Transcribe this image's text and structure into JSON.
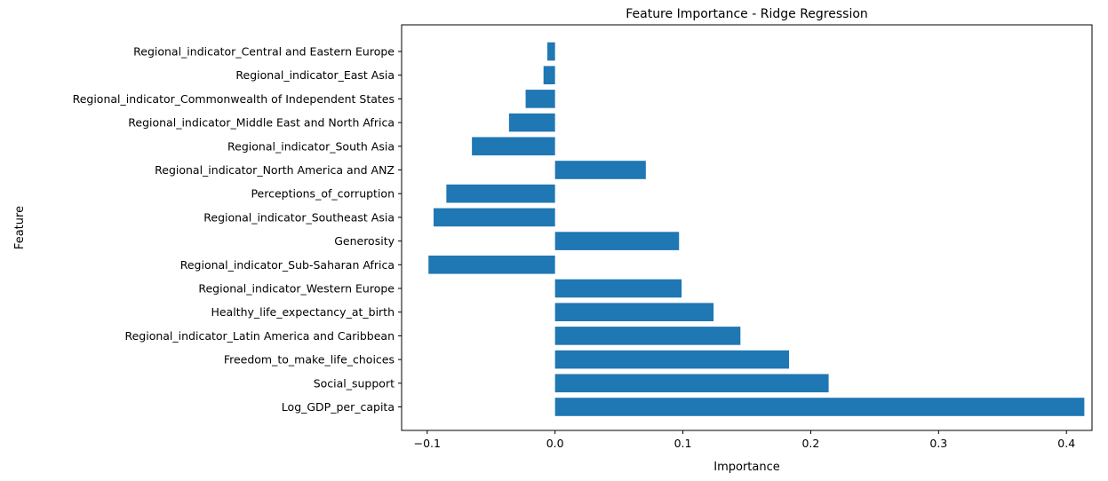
{
  "chart_data": {
    "type": "bar",
    "orientation": "horizontal",
    "title": "Feature Importance - Ridge Regression",
    "xlabel": "Importance",
    "ylabel": "Feature",
    "xlim": [
      -0.12,
      0.42
    ],
    "x_ticks": [
      -0.1,
      0.0,
      0.1,
      0.2,
      0.3,
      0.4
    ],
    "x_tick_labels": [
      "−0.1",
      "0.0",
      "0.1",
      "0.2",
      "0.3",
      "0.4"
    ],
    "grid": false,
    "bar_color": "#1f77b4",
    "categories": [
      "Regional_indicator_Central and Eastern Europe",
      "Regional_indicator_East Asia",
      "Regional_indicator_Commonwealth of Independent States",
      "Regional_indicator_Middle East and North Africa",
      "Regional_indicator_South Asia",
      "Regional_indicator_North America and ANZ",
      "Perceptions_of_corruption",
      "Regional_indicator_Southeast Asia",
      "Generosity",
      "Regional_indicator_Sub-Saharan Africa",
      "Regional_indicator_Western Europe",
      "Healthy_life_expectancy_at_birth",
      "Regional_indicator_Latin America and Caribbean",
      "Freedom_to_make_life_choices",
      "Social_support",
      "Log_GDP_per_capita"
    ],
    "values": [
      -0.006,
      -0.009,
      -0.023,
      -0.036,
      -0.065,
      0.071,
      -0.085,
      -0.095,
      0.097,
      -0.099,
      0.099,
      0.124,
      0.145,
      0.183,
      0.214,
      0.414
    ]
  }
}
